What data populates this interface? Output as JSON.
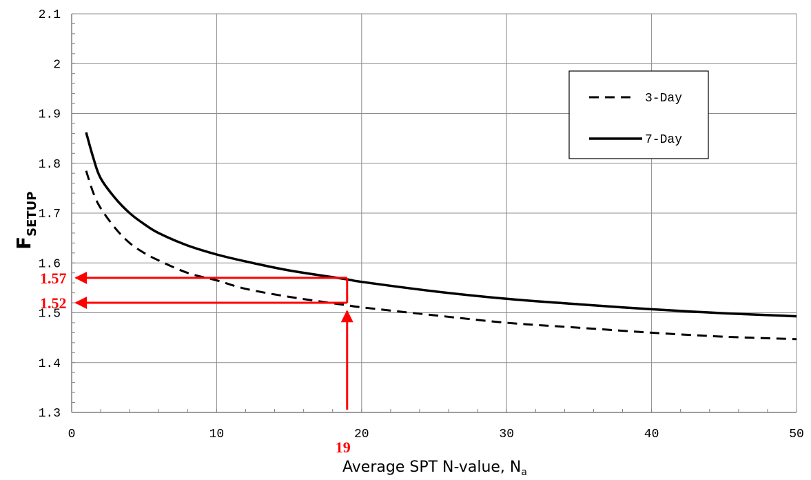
{
  "chart_data": {
    "type": "line",
    "xlabel_main": "Average SPT N-value, N",
    "xlabel_sub": "a",
    "ylabel_main": "F",
    "ylabel_sub": "SETUP",
    "xlim": [
      0,
      50
    ],
    "ylim": [
      1.3,
      2.1
    ],
    "x_ticks": [
      "0",
      "10",
      "20",
      "30",
      "40",
      "50"
    ],
    "y_ticks": [
      "1.3",
      "1.4",
      "1.5",
      "1.6",
      "1.7",
      "1.8",
      "1.9",
      "2",
      "2.1"
    ],
    "grid": true,
    "legend_position": "top-right",
    "series": [
      {
        "name": "3-Day",
        "style": "dashed",
        "color": "#000000",
        "x": [
          1,
          1.5,
          2,
          3,
          4,
          5,
          6,
          8,
          10,
          12,
          15,
          19,
          20,
          25,
          30,
          35,
          40,
          45,
          50
        ],
        "y": [
          1.785,
          1.74,
          1.71,
          1.67,
          1.64,
          1.62,
          1.605,
          1.58,
          1.565,
          1.548,
          1.532,
          1.515,
          1.511,
          1.495,
          1.48,
          1.47,
          1.46,
          1.452,
          1.447
        ]
      },
      {
        "name": "7-Day",
        "style": "solid",
        "color": "#000000",
        "x": [
          1,
          1.5,
          2,
          3,
          4,
          5,
          6,
          8,
          10,
          12,
          15,
          19,
          20,
          25,
          30,
          35,
          40,
          45,
          50
        ],
        "y": [
          1.862,
          1.81,
          1.77,
          1.73,
          1.7,
          1.678,
          1.66,
          1.635,
          1.617,
          1.603,
          1.585,
          1.567,
          1.562,
          1.543,
          1.528,
          1.517,
          1.507,
          1.499,
          1.493
        ]
      }
    ],
    "annotations": {
      "color": "#ff0000",
      "x_value": 19,
      "y_values": [
        1.57,
        1.52
      ],
      "x_label": "19",
      "y_labels": [
        "1.57",
        "1.52"
      ]
    }
  }
}
